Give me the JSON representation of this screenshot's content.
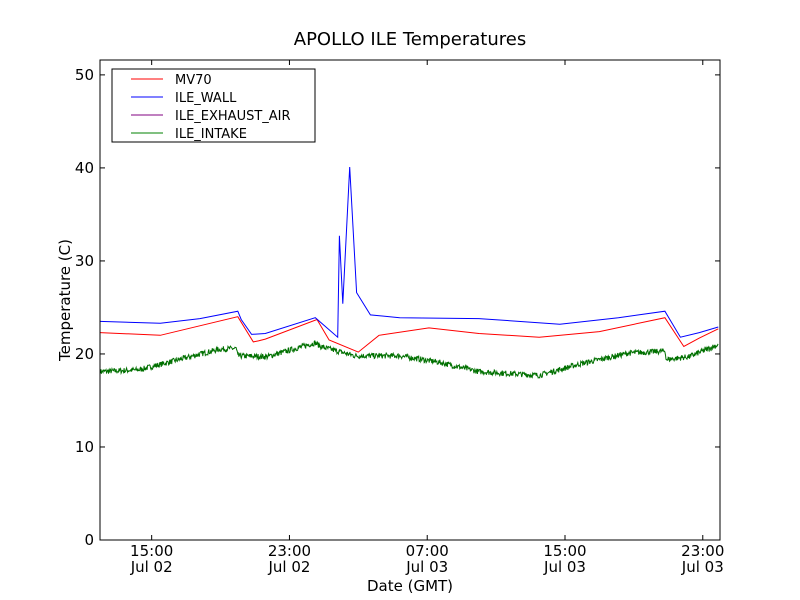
{
  "chart_data": {
    "type": "line",
    "title": "APOLLO ILE Temperatures",
    "xlabel": "Date (GMT)",
    "ylabel": "Temperature (C)",
    "x_units": "hours since Jul 02 12:00 GMT",
    "xlim": [
      0,
      36
    ],
    "ylim": [
      0,
      51.6
    ],
    "xticks": [
      {
        "x": 3,
        "time": "15:00",
        "date": "Jul 02"
      },
      {
        "x": 11,
        "time": "23:00",
        "date": "Jul 02"
      },
      {
        "x": 19,
        "time": "07:00",
        "date": "Jul 03"
      },
      {
        "x": 27,
        "time": "15:00",
        "date": "Jul 03"
      },
      {
        "x": 35,
        "time": "23:00",
        "date": "Jul 03"
      }
    ],
    "yticks": [
      0,
      10,
      20,
      30,
      40,
      50
    ],
    "legend_position": "top-left",
    "series": [
      {
        "name": "MV70",
        "color": "#ff0000",
        "noisy": false,
        "x": [
          0,
          3.5,
          8.0,
          8.9,
          9.2,
          9.6,
          12.6,
          13.3,
          15.0,
          16.2,
          19.1,
          22.0,
          25.5,
          29.0,
          32.8,
          33.9,
          34.8,
          35.9
        ],
        "y": [
          22.3,
          22.0,
          24.0,
          21.3,
          21.4,
          21.6,
          23.7,
          21.5,
          20.2,
          22.0,
          22.8,
          22.2,
          21.8,
          22.4,
          23.9,
          20.8,
          21.7,
          22.7
        ]
      },
      {
        "name": "ILE_WALL",
        "color": "#0000ff",
        "noisy": false,
        "x": [
          0,
          3.5,
          5.8,
          8.0,
          8.2,
          8.8,
          9.6,
          12.5,
          13.8,
          13.9,
          14.1,
          14.5,
          14.9,
          15.7,
          17.4,
          22.0,
          26.7,
          30.1,
          32.8,
          33.7,
          34.8,
          35.9
        ],
        "y": [
          23.5,
          23.3,
          23.8,
          24.6,
          23.7,
          22.1,
          22.2,
          23.9,
          21.8,
          32.7,
          25.4,
          40.1,
          26.6,
          24.2,
          23.9,
          23.8,
          23.2,
          23.9,
          24.6,
          21.8,
          22.3,
          22.9
        ]
      },
      {
        "name": "ILE_EXHAUST_AIR",
        "color": "#800080",
        "noisy": false,
        "x": [],
        "y": []
      },
      {
        "name": "ILE_INTAKE",
        "color": "#008000",
        "noisy": true,
        "x": [
          0,
          2.3,
          4.6,
          6.9,
          7.9,
          8.0,
          9.7,
          12.5,
          12.8,
          14.8,
          17.4,
          19.7,
          22.0,
          25.5,
          27.8,
          30.7,
          32.8,
          32.9,
          34.2,
          35.9
        ],
        "y": [
          18.1,
          18.3,
          19.4,
          20.5,
          20.6,
          19.8,
          19.7,
          21.2,
          20.8,
          19.8,
          19.8,
          19.1,
          18.1,
          17.7,
          18.9,
          20.1,
          20.3,
          19.4,
          19.7,
          21.0
        ]
      }
    ]
  }
}
